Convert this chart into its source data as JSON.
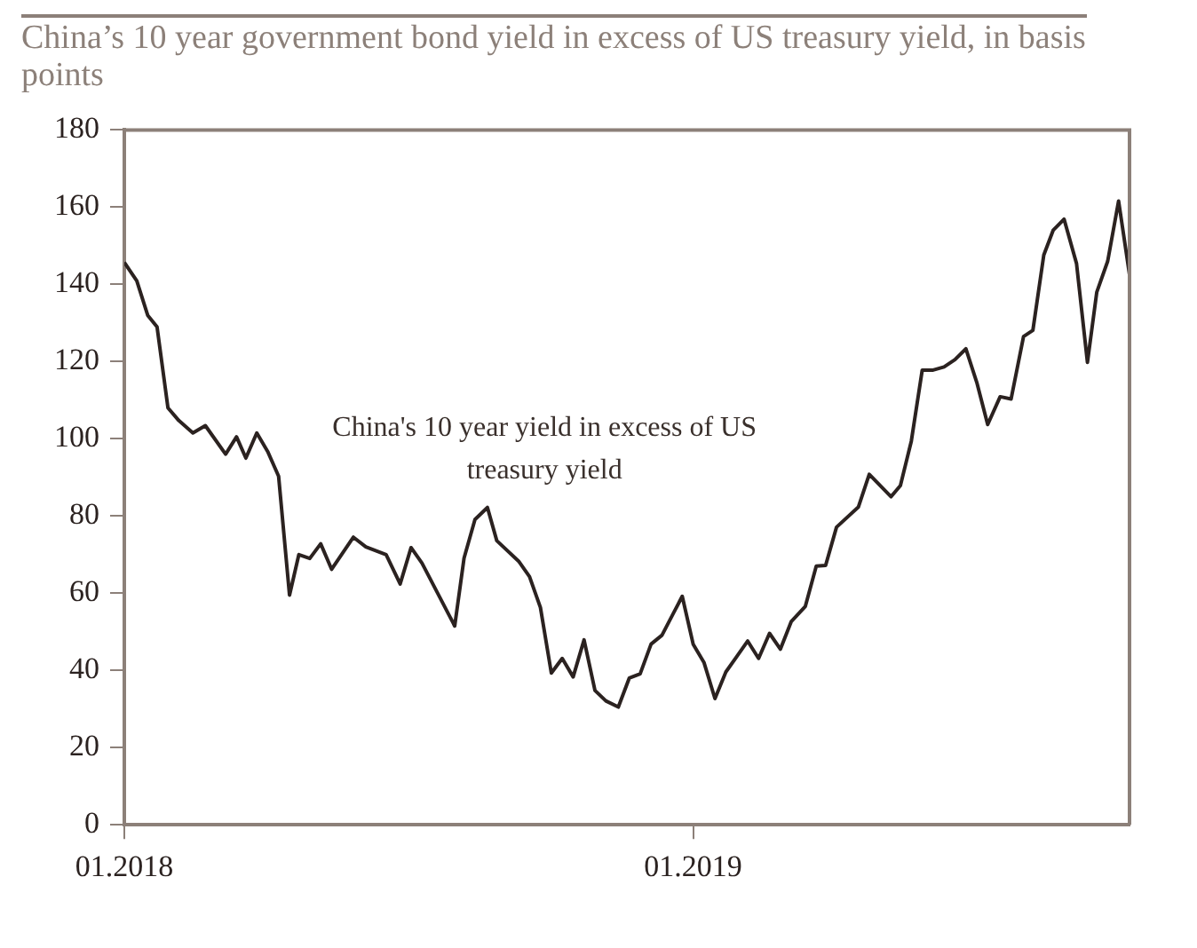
{
  "chart_data": {
    "type": "line",
    "title": "China’s 10 year government bond yield in excess of US treasury yield, in basis points",
    "annotations": [
      "China's 10 year yield in excess of US treasury yield"
    ],
    "x": [
      "2018-01-01",
      "2018-01-09",
      "2018-01-16",
      "2018-01-22",
      "2018-01-29",
      "2018-02-05",
      "2018-02-14",
      "2018-02-22",
      "2018-03-07",
      "2018-03-14",
      "2018-03-20",
      "2018-03-27",
      "2018-04-03",
      "2018-04-10",
      "2018-04-17",
      "2018-04-23",
      "2018-04-30",
      "2018-05-07",
      "2018-05-14",
      "2018-05-28",
      "2018-06-05",
      "2018-06-18",
      "2018-06-27",
      "2018-07-04",
      "2018-07-11",
      "2018-08-01",
      "2018-08-07",
      "2018-08-14",
      "2018-08-22",
      "2018-08-28",
      "2018-09-11",
      "2018-09-18",
      "2018-09-25",
      "2018-10-02",
      "2018-10-09",
      "2018-10-16",
      "2018-10-23",
      "2018-10-30",
      "2018-11-06",
      "2018-11-14",
      "2018-11-21",
      "2018-11-28",
      "2018-12-05",
      "2018-12-12",
      "2018-12-25",
      "2019-01-01",
      "2019-01-08",
      "2019-01-15",
      "2019-01-22",
      "2019-01-29",
      "2019-02-05",
      "2019-02-12",
      "2019-02-19",
      "2019-02-26",
      "2019-03-05",
      "2019-03-14",
      "2019-03-21",
      "2019-03-27",
      "2019-04-03",
      "2019-04-17",
      "2019-04-24",
      "2019-05-08",
      "2019-05-14",
      "2019-05-21",
      "2019-05-28",
      "2019-06-04",
      "2019-06-11",
      "2019-06-18",
      "2019-06-25",
      "2019-07-02",
      "2019-07-09",
      "2019-07-17",
      "2019-07-24",
      "2019-08-01",
      "2019-08-07",
      "2019-08-14",
      "2019-08-20",
      "2019-08-27",
      "2019-09-04",
      "2019-09-11",
      "2019-09-17",
      "2019-09-24",
      "2019-10-01",
      "2019-10-08"
    ],
    "series": [
      {
        "color": "#2b2220",
        "values": [
          145.7,
          140.9,
          132,
          129,
          108,
          104.7,
          101.5,
          103.4,
          96,
          100.5,
          95,
          101.5,
          96.7,
          90.3,
          59.5,
          70,
          69,
          72.8,
          66.2,
          74.5,
          72,
          70,
          62.4,
          71.8,
          67.8,
          51.5,
          69.1,
          79.1,
          82.2,
          73.6,
          68.3,
          64.3,
          56.3,
          39.3,
          43.1,
          38.3,
          47.9,
          34.8,
          32.1,
          30.5,
          38,
          39.1,
          46.8,
          49.1,
          59.2,
          46.8,
          42,
          32.7,
          39.6,
          43.6,
          47.6,
          43.1,
          49.6,
          45.5,
          52.7,
          56.6,
          67,
          67.2,
          77.1,
          82.3,
          90.8,
          85,
          87.9,
          99.4,
          117.8,
          117.8,
          118.6,
          120.5,
          123.3,
          114.6,
          103.7,
          110.9,
          110.3,
          126.5,
          128.1,
          147.6,
          154,
          156.9,
          145.4,
          119.8,
          138,
          146,
          161.6,
          142.5
        ]
      }
    ],
    "xlim": [
      "2018-01-01",
      "2019-10-08"
    ],
    "xticks": [
      {
        "value": "2018-01",
        "label": "01.2018"
      },
      {
        "value": "2019-01",
        "label": "01.2019"
      }
    ],
    "ylim": [
      0,
      180
    ],
    "yticks": [
      0,
      20,
      40,
      60,
      80,
      100,
      120,
      140,
      160,
      180
    ],
    "legend": false,
    "marker": "none",
    "line_style": "solid"
  }
}
